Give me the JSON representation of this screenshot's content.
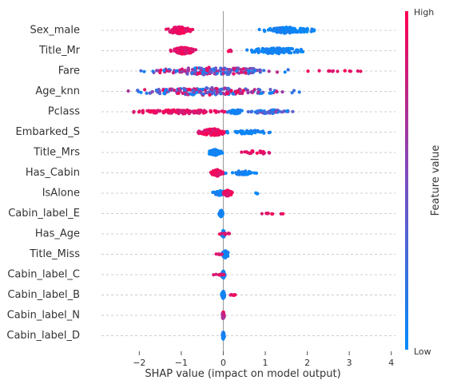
{
  "chart_data": {
    "type": "scatter",
    "subtype": "shap-beeswarm",
    "xlabel": "SHAP value (impact on model output)",
    "xlim": [
      -2.9,
      4.1
    ],
    "xticks": [
      -2,
      -1,
      0,
      1,
      2,
      3,
      4
    ],
    "xtick_labels": [
      "−2",
      "−1",
      "0",
      "1",
      "2",
      "3",
      "4"
    ],
    "grid": "horizontal",
    "colorbar": {
      "title": "Feature value",
      "high_label": "High",
      "low_label": "Low",
      "high_color": "#ff0052",
      "low_color": "#008bfb",
      "mid_color": "#7a4fc0",
      "placement": "right"
    },
    "features": [
      {
        "name": "Sex_male",
        "clusters": [
          {
            "center": -1.05,
            "spread": 0.8,
            "count": 130,
            "value": "high",
            "width": 0.35
          },
          {
            "center": 1.55,
            "spread": 1.6,
            "count": 110,
            "value": "low",
            "width": 0.32
          }
        ]
      },
      {
        "name": "Title_Mr",
        "clusters": [
          {
            "center": -0.95,
            "spread": 0.7,
            "count": 120,
            "value": "high",
            "width": 0.35
          },
          {
            "center": 1.25,
            "spread": 1.9,
            "count": 100,
            "value": "low",
            "width": 0.32
          },
          {
            "center": 0.15,
            "spread": 0.2,
            "count": 8,
            "value": "high",
            "width": 0.1
          }
        ]
      },
      {
        "name": "Fare",
        "clusters": [
          {
            "center": -0.3,
            "spread": 4.4,
            "count": 180,
            "value": "mixed",
            "width": 0.38
          },
          {
            "center": 2.7,
            "spread": 2.0,
            "count": 14,
            "value": "high",
            "width": 0.05
          }
        ]
      },
      {
        "name": "Age_knn",
        "clusters": [
          {
            "center": -0.3,
            "spread": 4.8,
            "count": 190,
            "value": "mixed",
            "width": 0.38
          }
        ]
      },
      {
        "name": "Pclass",
        "clusters": [
          {
            "center": -1.0,
            "spread": 3.2,
            "count": 120,
            "value": "high",
            "width": 0.2
          },
          {
            "center": 0.3,
            "spread": 0.5,
            "count": 40,
            "value": "low",
            "width": 0.22
          },
          {
            "center": 1.1,
            "spread": 1.4,
            "count": 55,
            "value": "mixed-low",
            "width": 0.2
          }
        ]
      },
      {
        "name": "Embarked_S",
        "clusters": [
          {
            "center": -0.25,
            "spread": 0.9,
            "count": 110,
            "value": "high",
            "width": 0.35
          },
          {
            "center": 0.6,
            "spread": 1.3,
            "count": 50,
            "value": "low",
            "width": 0.2
          }
        ]
      },
      {
        "name": "Title_Mrs",
        "clusters": [
          {
            "center": -0.2,
            "spread": 0.4,
            "count": 120,
            "value": "low",
            "width": 0.3
          },
          {
            "center": 0.8,
            "spread": 1.1,
            "count": 22,
            "value": "high",
            "width": 0.18
          }
        ]
      },
      {
        "name": "Has_Cabin",
        "clusters": [
          {
            "center": -0.15,
            "spread": 0.35,
            "count": 120,
            "value": "high",
            "width": 0.33
          },
          {
            "center": 0.45,
            "spread": 0.85,
            "count": 40,
            "value": "low",
            "width": 0.2
          }
        ]
      },
      {
        "name": "IsAlone",
        "clusters": [
          {
            "center": -0.05,
            "spread": 0.55,
            "count": 60,
            "value": "low",
            "width": 0.25
          },
          {
            "center": 0.1,
            "spread": 0.3,
            "count": 60,
            "value": "high",
            "width": 0.3
          },
          {
            "center": 0.8,
            "spread": 0.15,
            "count": 3,
            "value": "low",
            "width": 0.05
          }
        ]
      },
      {
        "name": "Cabin_label_E",
        "clusters": [
          {
            "center": -0.05,
            "spread": 0.12,
            "count": 80,
            "value": "low",
            "width": 0.32
          },
          {
            "center": 1.2,
            "spread": 1.15,
            "count": 9,
            "value": "high",
            "width": 0.05
          }
        ]
      },
      {
        "name": "Has_Age",
        "clusters": [
          {
            "center": 0.0,
            "spread": 0.1,
            "count": 70,
            "value": "low",
            "width": 0.36
          },
          {
            "center": 0.05,
            "spread": 0.5,
            "count": 10,
            "value": "high",
            "width": 0.08
          }
        ]
      },
      {
        "name": "Title_Miss",
        "clusters": [
          {
            "center": 0.05,
            "spread": 0.2,
            "count": 70,
            "value": "low",
            "width": 0.36
          },
          {
            "center": -0.1,
            "spread": 0.25,
            "count": 6,
            "value": "high",
            "width": 0.05
          }
        ]
      },
      {
        "name": "Cabin_label_C",
        "clusters": [
          {
            "center": 0.0,
            "spread": 0.12,
            "count": 75,
            "value": "low",
            "width": 0.36
          },
          {
            "center": -0.05,
            "spread": 0.8,
            "count": 10,
            "value": "high",
            "width": 0.05
          }
        ]
      },
      {
        "name": "Cabin_label_B",
        "clusters": [
          {
            "center": 0.0,
            "spread": 0.1,
            "count": 75,
            "value": "low",
            "width": 0.36
          },
          {
            "center": 0.2,
            "spread": 0.35,
            "count": 7,
            "value": "high",
            "width": 0.05
          }
        ]
      },
      {
        "name": "Cabin_label_N",
        "clusters": [
          {
            "center": 0.0,
            "spread": 0.06,
            "count": 60,
            "value": "mixed-high",
            "width": 0.36
          }
        ]
      },
      {
        "name": "Cabin_label_D",
        "clusters": [
          {
            "center": 0.0,
            "spread": 0.06,
            "count": 55,
            "value": "low",
            "width": 0.36
          }
        ]
      }
    ]
  }
}
